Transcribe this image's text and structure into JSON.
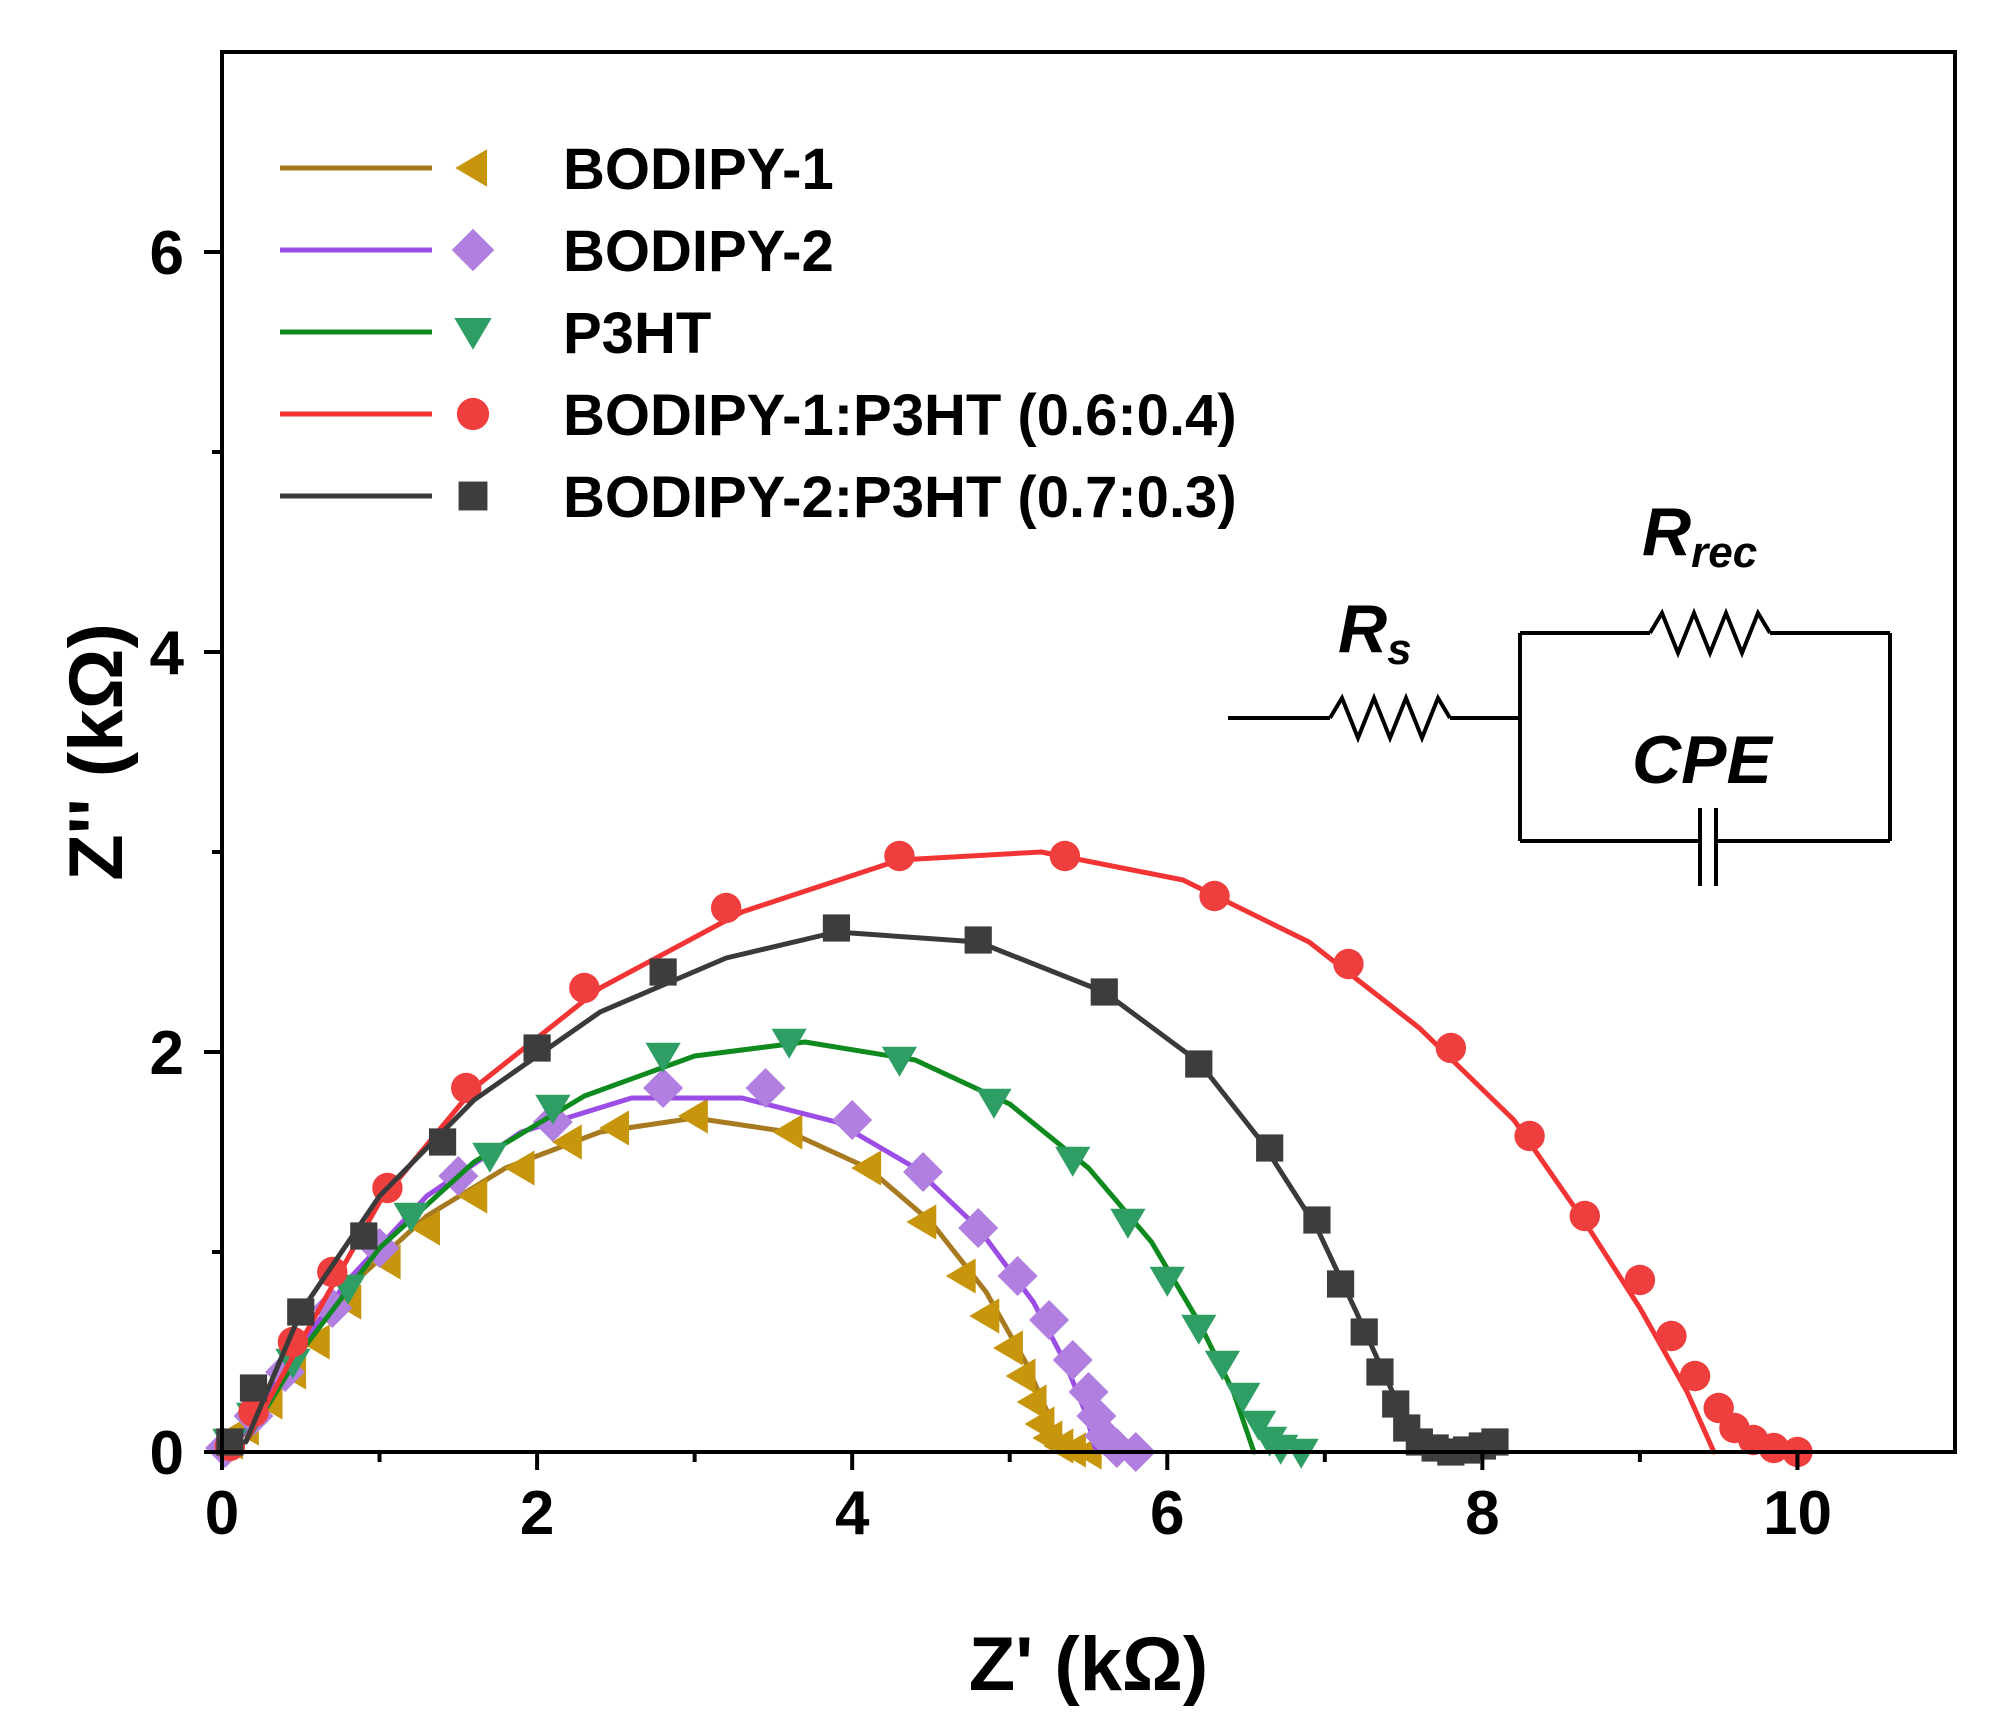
{
  "chart_data": {
    "type": "scatter",
    "title": "",
    "xlabel": "Z' (kΩ)",
    "ylabel": "Z'' (kΩ)",
    "xlim": [
      0,
      11
    ],
    "ylim": [
      0,
      7
    ],
    "xticks": [
      "0",
      "2",
      "4",
      "6",
      "8",
      "10"
    ],
    "yticks": [
      "0",
      "2",
      "4",
      "6"
    ],
    "xtick_values": [
      0,
      2,
      4,
      6,
      8,
      10
    ],
    "ytick_values": [
      0,
      2,
      4,
      6
    ],
    "grid": false,
    "legend_position": "top-left",
    "series": [
      {
        "name": "BODIPY-1",
        "color": "#c8960c",
        "line_color": "#a87a20",
        "marker": "triangle-left",
        "points": [
          [
            0.05,
            0.05
          ],
          [
            0.15,
            0.12
          ],
          [
            0.3,
            0.25
          ],
          [
            0.45,
            0.4
          ],
          [
            0.6,
            0.55
          ],
          [
            0.8,
            0.75
          ],
          [
            1.05,
            0.95
          ],
          [
            1.3,
            1.12
          ],
          [
            1.6,
            1.28
          ],
          [
            1.9,
            1.42
          ],
          [
            2.2,
            1.55
          ],
          [
            2.5,
            1.62
          ],
          [
            3.0,
            1.68
          ],
          [
            3.6,
            1.6
          ],
          [
            4.1,
            1.42
          ],
          [
            4.45,
            1.15
          ],
          [
            4.7,
            0.88
          ],
          [
            4.85,
            0.68
          ],
          [
            5.0,
            0.52
          ],
          [
            5.08,
            0.38
          ],
          [
            5.15,
            0.25
          ],
          [
            5.2,
            0.14
          ],
          [
            5.25,
            0.07
          ],
          [
            5.32,
            0.03
          ],
          [
            5.4,
            0.01
          ],
          [
            5.5,
            0.0
          ]
        ],
        "fit": [
          [
            0.15,
            0.05
          ],
          [
            0.4,
            0.4
          ],
          [
            0.8,
            0.82
          ],
          [
            1.3,
            1.18
          ],
          [
            1.8,
            1.42
          ],
          [
            2.4,
            1.6
          ],
          [
            3.0,
            1.67
          ],
          [
            3.6,
            1.6
          ],
          [
            4.1,
            1.42
          ],
          [
            4.5,
            1.15
          ],
          [
            4.85,
            0.8
          ],
          [
            5.1,
            0.45
          ],
          [
            5.25,
            0.18
          ],
          [
            5.32,
            0.0
          ]
        ]
      },
      {
        "name": "BODIPY-2",
        "color": "#b07fe0",
        "line_color": "#9b4de6",
        "marker": "diamond",
        "points": [
          [
            0.02,
            0.02
          ],
          [
            0.2,
            0.18
          ],
          [
            0.4,
            0.4
          ],
          [
            0.7,
            0.72
          ],
          [
            1.0,
            1.02
          ],
          [
            1.5,
            1.38
          ],
          [
            2.1,
            1.65
          ],
          [
            2.8,
            1.82
          ],
          [
            3.45,
            1.82
          ],
          [
            4.0,
            1.66
          ],
          [
            4.45,
            1.4
          ],
          [
            4.8,
            1.12
          ],
          [
            5.05,
            0.88
          ],
          [
            5.25,
            0.66
          ],
          [
            5.4,
            0.46
          ],
          [
            5.5,
            0.3
          ],
          [
            5.55,
            0.18
          ],
          [
            5.6,
            0.08
          ],
          [
            5.68,
            0.02
          ],
          [
            5.8,
            0.0
          ]
        ],
        "fit": [
          [
            0.1,
            0.05
          ],
          [
            0.4,
            0.42
          ],
          [
            0.8,
            0.86
          ],
          [
            1.3,
            1.28
          ],
          [
            1.9,
            1.6
          ],
          [
            2.6,
            1.77
          ],
          [
            3.3,
            1.77
          ],
          [
            3.9,
            1.65
          ],
          [
            4.4,
            1.42
          ],
          [
            4.8,
            1.12
          ],
          [
            5.15,
            0.75
          ],
          [
            5.35,
            0.45
          ],
          [
            5.48,
            0.2
          ],
          [
            5.55,
            0.0
          ]
        ]
      },
      {
        "name": "P3HT",
        "color": "#2e9e64",
        "line_color": "#0f8a1e",
        "marker": "triangle-down",
        "points": [
          [
            0.05,
            0.05
          ],
          [
            0.2,
            0.18
          ],
          [
            0.45,
            0.45
          ],
          [
            0.8,
            0.82
          ],
          [
            1.2,
            1.18
          ],
          [
            1.7,
            1.48
          ],
          [
            2.1,
            1.72
          ],
          [
            2.8,
            1.98
          ],
          [
            3.6,
            2.05
          ],
          [
            4.3,
            1.96
          ],
          [
            4.9,
            1.75
          ],
          [
            5.4,
            1.46
          ],
          [
            5.75,
            1.15
          ],
          [
            6.0,
            0.86
          ],
          [
            6.2,
            0.62
          ],
          [
            6.35,
            0.44
          ],
          [
            6.48,
            0.28
          ],
          [
            6.58,
            0.14
          ],
          [
            6.65,
            0.06
          ],
          [
            6.72,
            0.02
          ],
          [
            6.85,
            0.0
          ]
        ],
        "fit": [
          [
            0.15,
            0.05
          ],
          [
            0.5,
            0.5
          ],
          [
            1.0,
            1.02
          ],
          [
            1.6,
            1.45
          ],
          [
            2.3,
            1.78
          ],
          [
            3.0,
            1.98
          ],
          [
            3.7,
            2.05
          ],
          [
            4.4,
            1.96
          ],
          [
            5.0,
            1.74
          ],
          [
            5.5,
            1.42
          ],
          [
            5.9,
            1.05
          ],
          [
            6.2,
            0.65
          ],
          [
            6.42,
            0.3
          ],
          [
            6.55,
            0.0
          ]
        ]
      },
      {
        "name": "BODIPY-1:P3HT (0.6:0.4)",
        "color": "#ef3e3e",
        "line_color": "#f23434",
        "marker": "circle",
        "points": [
          [
            0.05,
            0.03
          ],
          [
            0.2,
            0.2
          ],
          [
            0.45,
            0.55
          ],
          [
            0.7,
            0.9
          ],
          [
            1.05,
            1.32
          ],
          [
            1.55,
            1.82
          ],
          [
            2.3,
            2.32
          ],
          [
            3.2,
            2.72
          ],
          [
            4.3,
            2.98
          ],
          [
            5.35,
            2.98
          ],
          [
            6.3,
            2.78
          ],
          [
            7.15,
            2.44
          ],
          [
            7.8,
            2.02
          ],
          [
            8.3,
            1.58
          ],
          [
            8.65,
            1.18
          ],
          [
            9.0,
            0.86
          ],
          [
            9.2,
            0.58
          ],
          [
            9.35,
            0.38
          ],
          [
            9.5,
            0.22
          ],
          [
            9.6,
            0.12
          ],
          [
            9.72,
            0.06
          ],
          [
            9.85,
            0.02
          ],
          [
            10.0,
            0.0
          ]
        ],
        "fit": [
          [
            0.15,
            0.05
          ],
          [
            0.5,
            0.55
          ],
          [
            1.0,
            1.25
          ],
          [
            1.6,
            1.82
          ],
          [
            2.4,
            2.32
          ],
          [
            3.3,
            2.7
          ],
          [
            4.3,
            2.96
          ],
          [
            5.2,
            3.0
          ],
          [
            6.1,
            2.86
          ],
          [
            6.9,
            2.55
          ],
          [
            7.6,
            2.12
          ],
          [
            8.2,
            1.66
          ],
          [
            8.65,
            1.15
          ],
          [
            9.0,
            0.72
          ],
          [
            9.3,
            0.3
          ],
          [
            9.47,
            0.0
          ]
        ]
      },
      {
        "name": "BODIPY-2:P3HT (0.7:0.3)",
        "color": "#3d3d3d",
        "line_color": "#3a3a3a",
        "marker": "square",
        "points": [
          [
            0.05,
            0.05
          ],
          [
            0.2,
            0.32
          ],
          [
            0.5,
            0.7
          ],
          [
            0.9,
            1.08
          ],
          [
            1.4,
            1.55
          ],
          [
            2.0,
            2.02
          ],
          [
            2.8,
            2.4
          ],
          [
            3.9,
            2.62
          ],
          [
            4.8,
            2.56
          ],
          [
            5.6,
            2.3
          ],
          [
            6.2,
            1.94
          ],
          [
            6.65,
            1.52
          ],
          [
            6.95,
            1.16
          ],
          [
            7.1,
            0.84
          ],
          [
            7.25,
            0.6
          ],
          [
            7.35,
            0.4
          ],
          [
            7.45,
            0.24
          ],
          [
            7.52,
            0.12
          ],
          [
            7.6,
            0.05
          ],
          [
            7.7,
            0.02
          ],
          [
            7.8,
            0.0
          ],
          [
            7.9,
            0.01
          ],
          [
            8.0,
            0.03
          ],
          [
            8.08,
            0.05
          ]
        ],
        "fit": [
          [
            0.15,
            0.05
          ],
          [
            0.5,
            0.7
          ],
          [
            1.0,
            1.28
          ],
          [
            1.6,
            1.76
          ],
          [
            2.4,
            2.2
          ],
          [
            3.2,
            2.47
          ],
          [
            3.9,
            2.6
          ],
          [
            4.8,
            2.55
          ],
          [
            5.6,
            2.3
          ],
          [
            6.2,
            1.95
          ],
          [
            6.6,
            1.55
          ],
          [
            6.95,
            1.12
          ],
          [
            7.2,
            0.7
          ],
          [
            7.4,
            0.35
          ],
          [
            7.55,
            0.1
          ],
          [
            7.7,
            0.02
          ],
          [
            7.85,
            0.0
          ],
          [
            8.0,
            0.05
          ]
        ]
      }
    ]
  },
  "circuit": {
    "rs_main": "R",
    "rs_sub": "s",
    "rrec_main": "R",
    "rrec_sub": "rec",
    "cpe_label": "CPE"
  }
}
